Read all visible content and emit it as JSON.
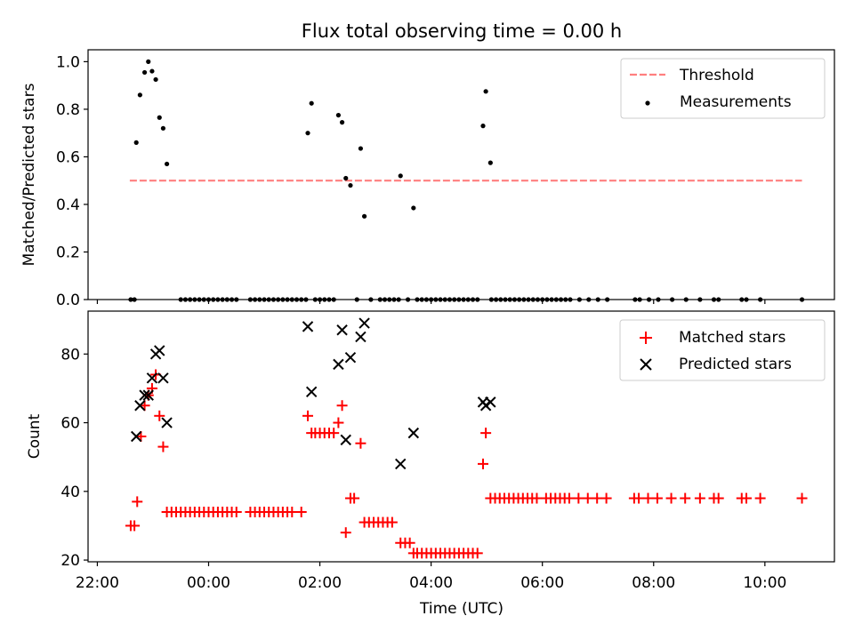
{
  "chart_data": [
    {
      "type": "scatter",
      "title": "Flux total observing time = 0.00 h",
      "ylabel": "Matched/Predicted stars",
      "xlabel": "",
      "ylim": [
        0,
        1.05
      ],
      "xlim": [
        "21:50",
        "11:15"
      ],
      "yticks": [
        0.0,
        0.2,
        0.4,
        0.6,
        0.8,
        1.0
      ],
      "ytick_labels": [
        "0.0",
        "0.2",
        "0.4",
        "0.6",
        "0.8",
        "1.0"
      ],
      "legend_position": "top-right",
      "threshold": {
        "name": "Threshold",
        "value": 0.5,
        "x_start": "22:35",
        "x_end": "10:40",
        "color": "#ff7f7f"
      },
      "measurements": {
        "name": "Measurements",
        "color": "#000000",
        "points": [
          [
            "22:42",
            0.66
          ],
          [
            "22:46",
            0.86
          ],
          [
            "22:51",
            0.955
          ],
          [
            "22:55",
            1.0
          ],
          [
            "22:59",
            0.96
          ],
          [
            "23:03",
            0.925
          ],
          [
            "23:07",
            0.765
          ],
          [
            "23:11",
            0.72
          ],
          [
            "23:15",
            0.57
          ],
          [
            "01:47",
            0.7
          ],
          [
            "01:51",
            0.825
          ],
          [
            "02:20",
            0.775
          ],
          [
            "02:24",
            0.745
          ],
          [
            "02:28",
            0.51
          ],
          [
            "02:33",
            0.48
          ],
          [
            "02:44",
            0.635
          ],
          [
            "02:48",
            0.35
          ],
          [
            "03:27",
            0.52
          ],
          [
            "03:41",
            0.385
          ],
          [
            "04:56",
            0.73
          ],
          [
            "04:59",
            0.875
          ],
          [
            "05:04",
            0.575
          ],
          [
            "22:36",
            0
          ],
          [
            "22:40",
            0
          ],
          [
            "23:30",
            0
          ],
          [
            "23:35",
            0
          ],
          [
            "23:40",
            0
          ],
          [
            "23:45",
            0
          ],
          [
            "23:50",
            0
          ],
          [
            "23:55",
            0
          ],
          [
            "00:00",
            0
          ],
          [
            "00:05",
            0
          ],
          [
            "00:10",
            0
          ],
          [
            "00:15",
            0
          ],
          [
            "00:20",
            0
          ],
          [
            "00:25",
            0
          ],
          [
            "00:30",
            0
          ],
          [
            "00:45",
            0
          ],
          [
            "00:50",
            0
          ],
          [
            "00:55",
            0
          ],
          [
            "01:00",
            0
          ],
          [
            "01:05",
            0
          ],
          [
            "01:10",
            0
          ],
          [
            "01:15",
            0
          ],
          [
            "01:20",
            0
          ],
          [
            "01:25",
            0
          ],
          [
            "01:30",
            0
          ],
          [
            "01:35",
            0
          ],
          [
            "01:40",
            0
          ],
          [
            "01:45",
            0
          ],
          [
            "01:55",
            0
          ],
          [
            "02:00",
            0
          ],
          [
            "02:05",
            0
          ],
          [
            "02:10",
            0
          ],
          [
            "02:15",
            0
          ],
          [
            "02:40",
            0
          ],
          [
            "02:55",
            0
          ],
          [
            "03:05",
            0
          ],
          [
            "03:10",
            0
          ],
          [
            "03:15",
            0
          ],
          [
            "03:20",
            0
          ],
          [
            "03:25",
            0
          ],
          [
            "03:35",
            0
          ],
          [
            "03:45",
            0
          ],
          [
            "03:50",
            0
          ],
          [
            "03:55",
            0
          ],
          [
            "04:00",
            0
          ],
          [
            "04:05",
            0
          ],
          [
            "04:10",
            0
          ],
          [
            "04:15",
            0
          ],
          [
            "04:20",
            0
          ],
          [
            "04:25",
            0
          ],
          [
            "04:30",
            0
          ],
          [
            "04:35",
            0
          ],
          [
            "04:40",
            0
          ],
          [
            "04:45",
            0
          ],
          [
            "04:50",
            0
          ],
          [
            "05:05",
            0
          ],
          [
            "05:10",
            0
          ],
          [
            "05:15",
            0
          ],
          [
            "05:20",
            0
          ],
          [
            "05:25",
            0
          ],
          [
            "05:30",
            0
          ],
          [
            "05:35",
            0
          ],
          [
            "05:40",
            0
          ],
          [
            "05:45",
            0
          ],
          [
            "05:50",
            0
          ],
          [
            "05:55",
            0
          ],
          [
            "06:00",
            0
          ],
          [
            "06:05",
            0
          ],
          [
            "06:10",
            0
          ],
          [
            "06:15",
            0
          ],
          [
            "06:20",
            0
          ],
          [
            "06:25",
            0
          ],
          [
            "06:30",
            0
          ],
          [
            "06:40",
            0
          ],
          [
            "06:50",
            0
          ],
          [
            "07:00",
            0
          ],
          [
            "07:10",
            0
          ],
          [
            "07:40",
            0
          ],
          [
            "07:45",
            0
          ],
          [
            "07:55",
            0
          ],
          [
            "08:05",
            0
          ],
          [
            "08:20",
            0
          ],
          [
            "08:35",
            0
          ],
          [
            "08:50",
            0
          ],
          [
            "09:05",
            0
          ],
          [
            "09:10",
            0
          ],
          [
            "09:35",
            0
          ],
          [
            "09:40",
            0
          ],
          [
            "09:55",
            0
          ],
          [
            "10:40",
            0
          ]
        ]
      }
    },
    {
      "type": "scatter",
      "title": "",
      "xlabel": "Time (UTC)",
      "ylabel": "Count",
      "ylim": [
        19.5,
        92.5
      ],
      "xlim": [
        "21:50",
        "11:15"
      ],
      "yticks": [
        20,
        40,
        60,
        80
      ],
      "ytick_labels": [
        "20",
        "40",
        "60",
        "80"
      ],
      "xticks": [
        "22:00",
        "00:00",
        "02:00",
        "04:00",
        "06:00",
        "08:00",
        "10:00"
      ],
      "legend_position": "top-right",
      "series": [
        {
          "name": "Matched stars",
          "marker": "plus",
          "color": "#ff0000",
          "points": [
            [
              "22:36",
              30
            ],
            [
              "22:40",
              30
            ],
            [
              "22:43",
              37
            ],
            [
              "22:47",
              56
            ],
            [
              "22:51",
              65
            ],
            [
              "22:55",
              68
            ],
            [
              "22:59",
              70
            ],
            [
              "23:03",
              74
            ],
            [
              "23:07",
              62
            ],
            [
              "23:11",
              53
            ],
            [
              "23:15",
              34
            ],
            [
              "23:20",
              34
            ],
            [
              "23:25",
              34
            ],
            [
              "23:30",
              34
            ],
            [
              "23:35",
              34
            ],
            [
              "23:40",
              34
            ],
            [
              "23:45",
              34
            ],
            [
              "23:50",
              34
            ],
            [
              "23:55",
              34
            ],
            [
              "00:00",
              34
            ],
            [
              "00:05",
              34
            ],
            [
              "00:10",
              34
            ],
            [
              "00:15",
              34
            ],
            [
              "00:20",
              34
            ],
            [
              "00:25",
              34
            ],
            [
              "00:30",
              34
            ],
            [
              "00:45",
              34
            ],
            [
              "00:50",
              34
            ],
            [
              "00:55",
              34
            ],
            [
              "01:00",
              34
            ],
            [
              "01:05",
              34
            ],
            [
              "01:10",
              34
            ],
            [
              "01:15",
              34
            ],
            [
              "01:20",
              34
            ],
            [
              "01:25",
              34
            ],
            [
              "01:30",
              34
            ],
            [
              "01:40",
              34
            ],
            [
              "01:47",
              62
            ],
            [
              "01:51",
              57
            ],
            [
              "01:55",
              57
            ],
            [
              "02:00",
              57
            ],
            [
              "02:05",
              57
            ],
            [
              "02:10",
              57
            ],
            [
              "02:15",
              57
            ],
            [
              "02:20",
              60
            ],
            [
              "02:24",
              65
            ],
            [
              "02:28",
              28
            ],
            [
              "02:33",
              38
            ],
            [
              "02:37",
              38
            ],
            [
              "02:44",
              54
            ],
            [
              "02:48",
              31
            ],
            [
              "02:53",
              31
            ],
            [
              "02:58",
              31
            ],
            [
              "03:03",
              31
            ],
            [
              "03:08",
              31
            ],
            [
              "03:13",
              31
            ],
            [
              "03:18",
              31
            ],
            [
              "03:27",
              25
            ],
            [
              "03:32",
              25
            ],
            [
              "03:37",
              25
            ],
            [
              "03:41",
              22
            ],
            [
              "03:45",
              22
            ],
            [
              "03:50",
              22
            ],
            [
              "03:55",
              22
            ],
            [
              "04:00",
              22
            ],
            [
              "04:05",
              22
            ],
            [
              "04:10",
              22
            ],
            [
              "04:15",
              22
            ],
            [
              "04:20",
              22
            ],
            [
              "04:25",
              22
            ],
            [
              "04:30",
              22
            ],
            [
              "04:35",
              22
            ],
            [
              "04:40",
              22
            ],
            [
              "04:45",
              22
            ],
            [
              "04:50",
              22
            ],
            [
              "04:56",
              48
            ],
            [
              "04:59",
              57
            ],
            [
              "05:04",
              38
            ],
            [
              "05:09",
              38
            ],
            [
              "05:14",
              38
            ],
            [
              "05:19",
              38
            ],
            [
              "05:24",
              38
            ],
            [
              "05:29",
              38
            ],
            [
              "05:34",
              38
            ],
            [
              "05:39",
              38
            ],
            [
              "05:44",
              38
            ],
            [
              "05:49",
              38
            ],
            [
              "05:54",
              38
            ],
            [
              "06:04",
              38
            ],
            [
              "06:09",
              38
            ],
            [
              "06:14",
              38
            ],
            [
              "06:19",
              38
            ],
            [
              "06:24",
              38
            ],
            [
              "06:29",
              38
            ],
            [
              "06:39",
              38
            ],
            [
              "06:49",
              38
            ],
            [
              "06:59",
              38
            ],
            [
              "07:09",
              38
            ],
            [
              "07:39",
              38
            ],
            [
              "07:44",
              38
            ],
            [
              "07:54",
              38
            ],
            [
              "08:04",
              38
            ],
            [
              "08:19",
              38
            ],
            [
              "08:34",
              38
            ],
            [
              "08:50",
              38
            ],
            [
              "09:05",
              38
            ],
            [
              "09:10",
              38
            ],
            [
              "09:35",
              38
            ],
            [
              "09:40",
              38
            ],
            [
              "09:55",
              38
            ],
            [
              "10:40",
              38
            ]
          ]
        },
        {
          "name": "Predicted stars",
          "marker": "x",
          "color": "#000000",
          "points": [
            [
              "22:42",
              56
            ],
            [
              "22:46",
              65
            ],
            [
              "22:51",
              68
            ],
            [
              "22:55",
              68
            ],
            [
              "22:59",
              73
            ],
            [
              "23:03",
              80
            ],
            [
              "23:07",
              81
            ],
            [
              "23:11",
              73
            ],
            [
              "23:15",
              60
            ],
            [
              "01:47",
              88
            ],
            [
              "01:51",
              69
            ],
            [
              "02:20",
              77
            ],
            [
              "02:24",
              87
            ],
            [
              "02:28",
              55
            ],
            [
              "02:33",
              79
            ],
            [
              "02:44",
              85
            ],
            [
              "02:48",
              89
            ],
            [
              "03:27",
              48
            ],
            [
              "03:41",
              57
            ],
            [
              "04:56",
              66
            ],
            [
              "04:59",
              65
            ],
            [
              "05:04",
              66
            ]
          ]
        }
      ]
    }
  ]
}
